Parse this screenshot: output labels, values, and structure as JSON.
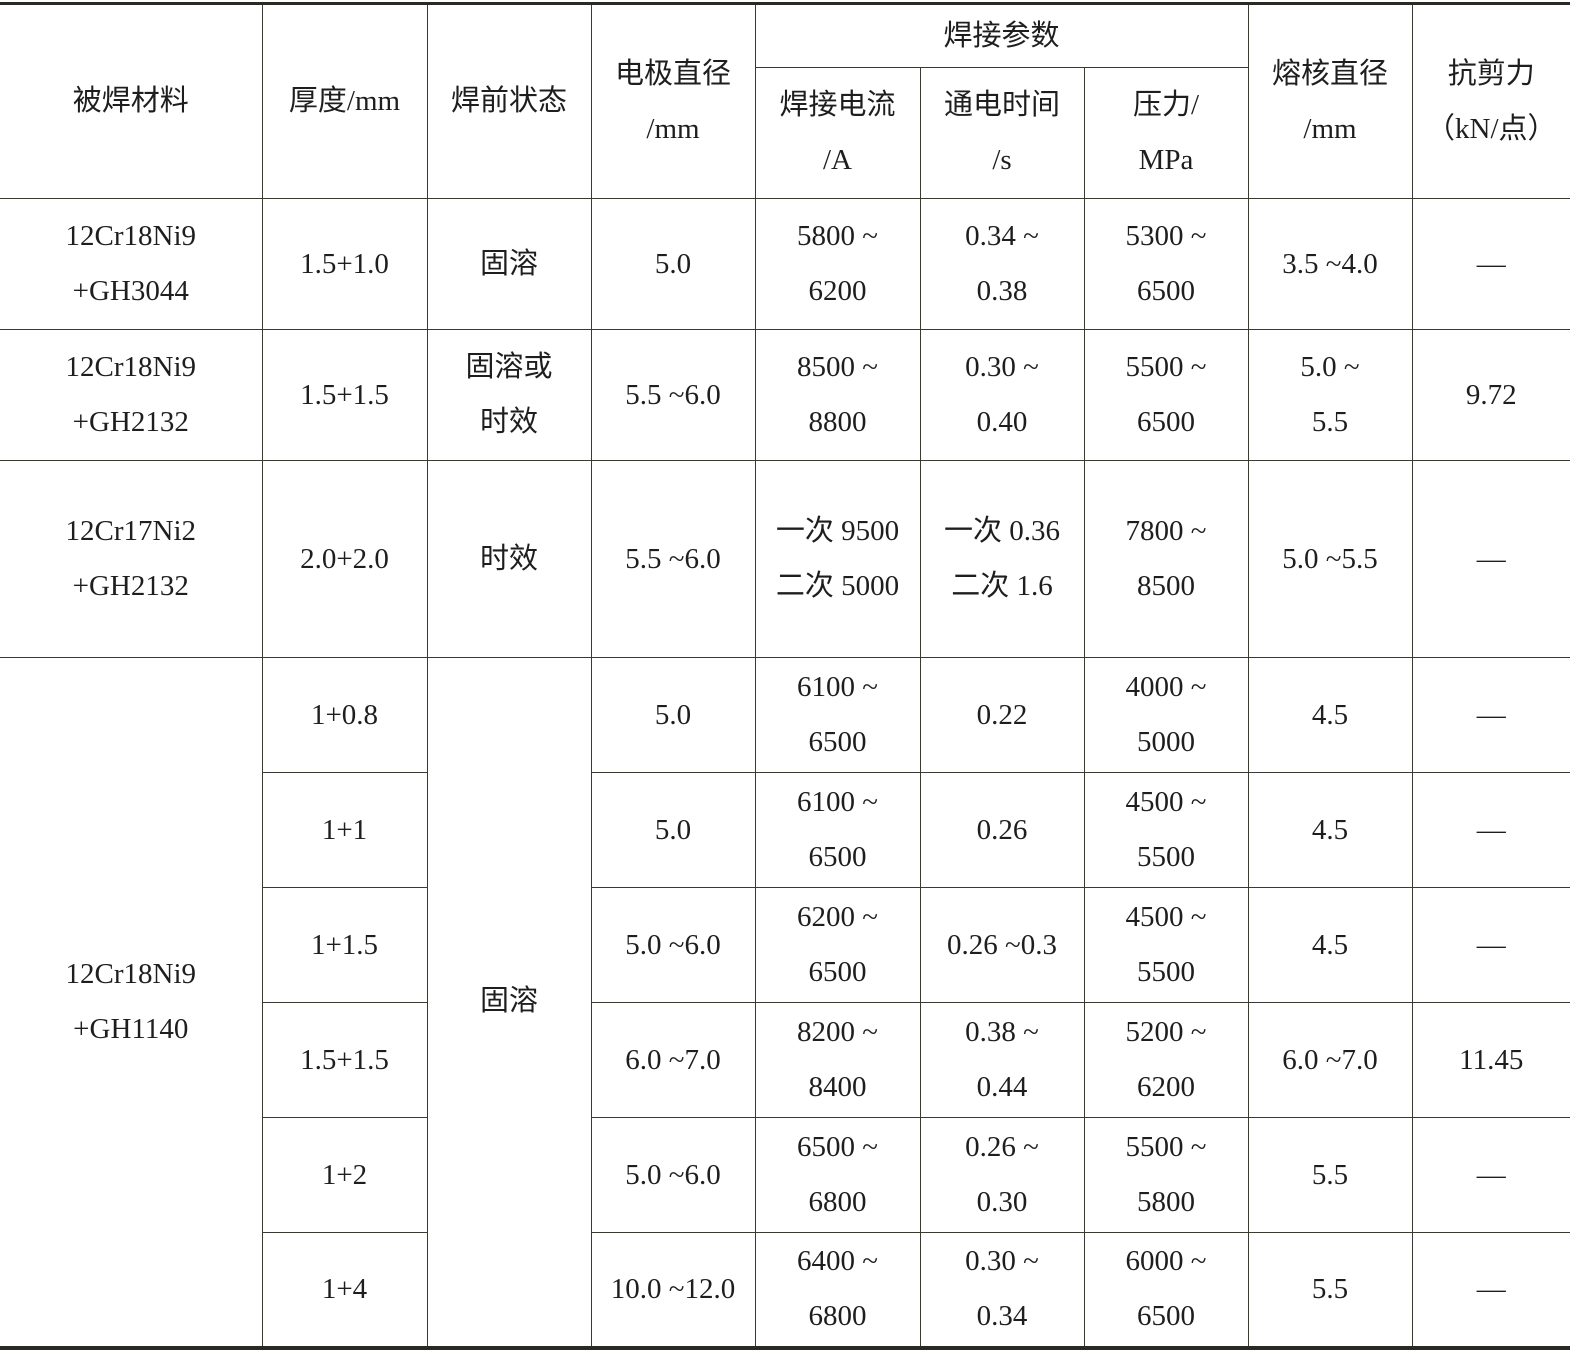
{
  "header": {
    "material": "被焊材料",
    "thickness": "厚度/mm",
    "pre_state": "焊前状态",
    "electrode": "电极直径\n/mm",
    "params": "焊接参数",
    "current": "焊接电流\n/A",
    "time": "通电时间\n/s",
    "pressure": "压力/\nMPa",
    "nugget": "熔核直径\n/mm",
    "shear": "抗剪力\n（kN/点）"
  },
  "rows": [
    {
      "material": "12Cr18Ni9\n+GH3044",
      "thickness": "1.5+1.0",
      "state": "固溶",
      "electrode": "5.0",
      "current": "5800 ~\n6200",
      "time": "0.34 ~\n0.38",
      "pressure": "5300 ~\n6500",
      "nugget": "3.5 ~4.0",
      "shear": "—"
    },
    {
      "material": "12Cr18Ni9\n+GH2132",
      "thickness": "1.5+1.5",
      "state": "固溶或\n时效",
      "electrode": "5.5 ~6.0",
      "current": "8500 ~\n8800",
      "time": "0.30 ~\n0.40",
      "pressure": "5500 ~\n6500",
      "nugget": "5.0 ~\n5.5",
      "shear": "9.72"
    },
    {
      "material": "12Cr17Ni2\n+GH2132",
      "thickness": "2.0+2.0",
      "state": "时效",
      "electrode": "5.5 ~6.0",
      "current": "一次 9500\n二次 5000",
      "time": "一次 0.36\n二次 1.6",
      "pressure": "7800 ~\n8500",
      "nugget": "5.0 ~5.5",
      "shear": "—"
    }
  ],
  "group": {
    "material": "12Cr18Ni9\n+GH1140",
    "state": "固溶",
    "rows": [
      {
        "thickness": "1+0.8",
        "electrode": "5.0",
        "current": "6100 ~\n6500",
        "time": "0.22",
        "pressure": "4000 ~\n5000",
        "nugget": "4.5",
        "shear": "—"
      },
      {
        "thickness": "1+1",
        "electrode": "5.0",
        "current": "6100 ~\n6500",
        "time": "0.26",
        "pressure": "4500 ~\n5500",
        "nugget": "4.5",
        "shear": "—"
      },
      {
        "thickness": "1+1.5",
        "electrode": "5.0 ~6.0",
        "current": "6200 ~\n6500",
        "time": "0.26 ~0.3",
        "pressure": "4500 ~\n5500",
        "nugget": "4.5",
        "shear": "—"
      },
      {
        "thickness": "1.5+1.5",
        "electrode": "6.0 ~7.0",
        "current": "8200 ~\n8400",
        "time": "0.38 ~\n0.44",
        "pressure": "5200 ~\n6200",
        "nugget": "6.0 ~7.0",
        "shear": "11.45"
      },
      {
        "thickness": "1+2",
        "electrode": "5.0 ~6.0",
        "current": "6500 ~\n6800",
        "time": "0.26 ~\n0.30",
        "pressure": "5500 ~\n5800",
        "nugget": "5.5",
        "shear": "—"
      },
      {
        "thickness": "1+4",
        "electrode": "10.0 ~12.0",
        "current": "6400 ~\n6800",
        "time": "0.30 ~\n0.34",
        "pressure": "6000 ~\n6500",
        "nugget": "5.5",
        "shear": "—"
      }
    ]
  }
}
